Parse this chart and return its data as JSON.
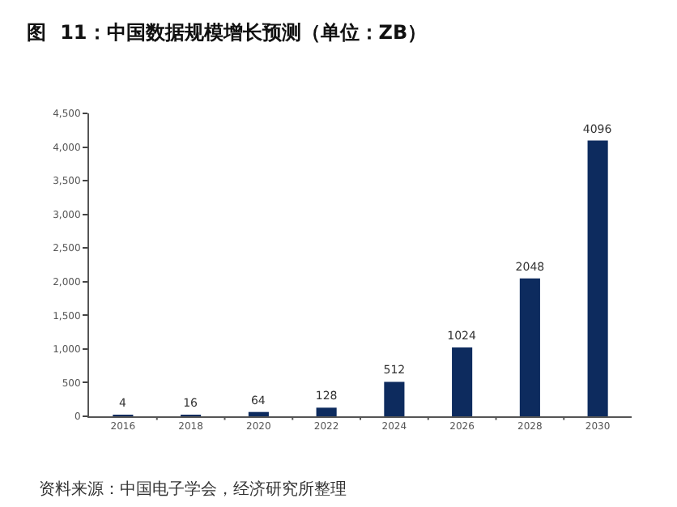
{
  "chart_data": {
    "type": "bar",
    "title": "图  11：中国数据规模增长预测（单位：ZB）",
    "categories": [
      "2016",
      "2018",
      "2020",
      "2022",
      "2024",
      "2026",
      "2028",
      "2030"
    ],
    "values": [
      4,
      16,
      64,
      128,
      512,
      1024,
      2048,
      4096
    ],
    "color": "#0d2b5e",
    "ylim": [
      0,
      4500
    ],
    "yticks": [
      0,
      {
        "value": 500,
        "label": "500"
      },
      {
        "value": 1000,
        "label": "1,000"
      },
      {
        "value": 1500,
        "label": "1,500"
      },
      {
        "value": 2000,
        "label": "2,000"
      },
      {
        "value": 2500,
        "label": "2,500"
      },
      {
        "value": 3000,
        "label": "3,000"
      },
      {
        "value": 3500,
        "label": "3,500"
      },
      {
        "value": 4000,
        "label": "4,000"
      },
      {
        "value": 4500,
        "label": "4,500"
      }
    ],
    "data_labels": true,
    "annotations": [
      "资料来源：中国电子学会，经济研究所整理"
    ]
  }
}
